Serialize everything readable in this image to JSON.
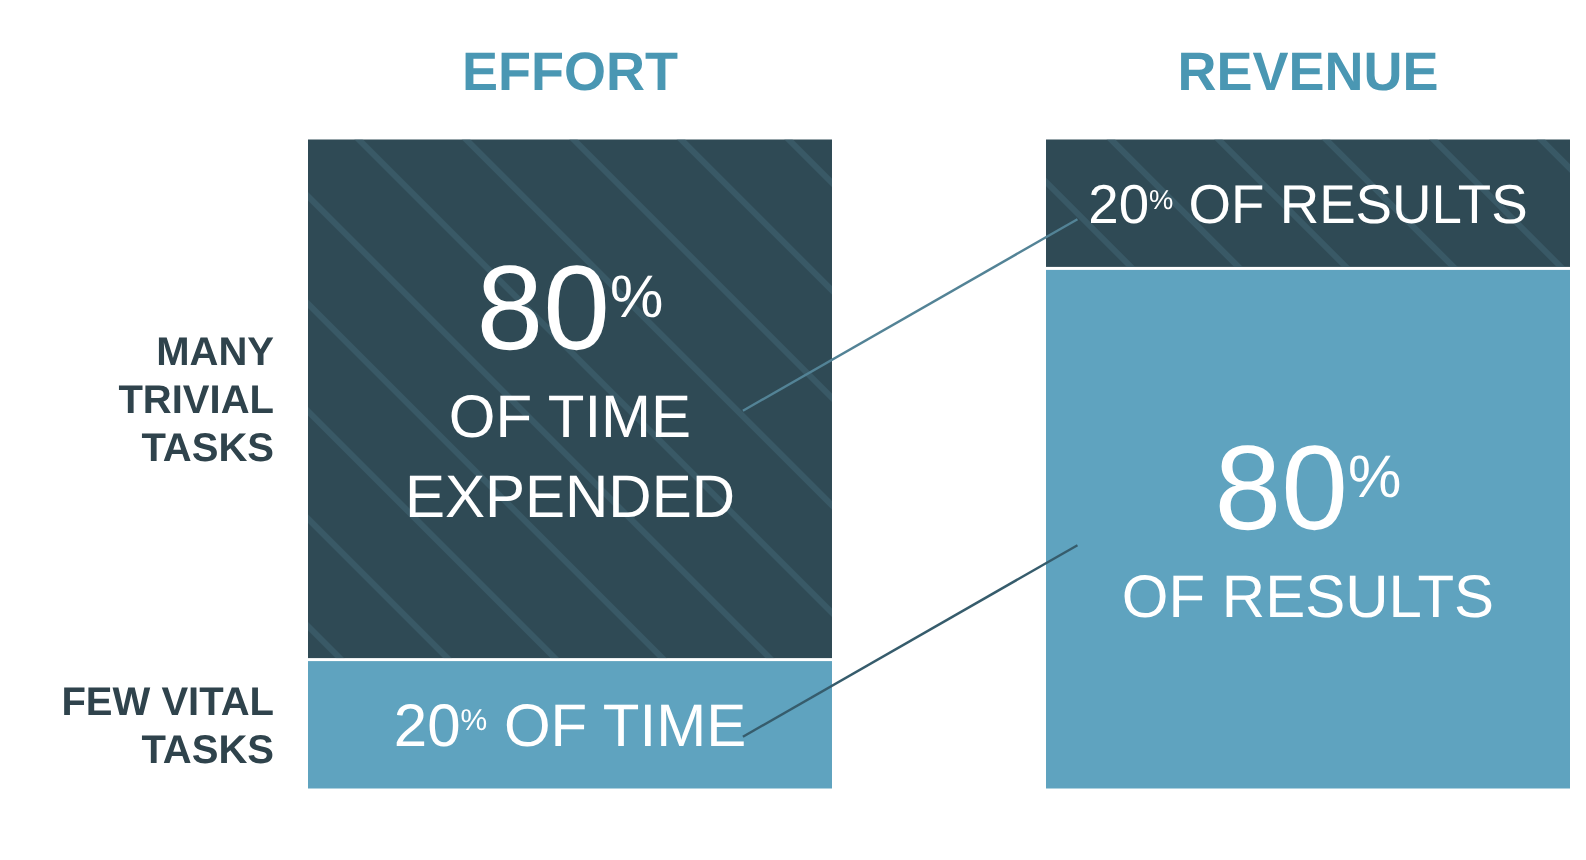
{
  "chart_data": {
    "type": "bar",
    "stacked": true,
    "categories": [
      "EFFORT",
      "REVENUE"
    ],
    "series": [
      {
        "name": "FEW VITAL TASKS",
        "color": "#5fa3bf",
        "values": [
          20,
          80
        ],
        "value_labels": [
          "20$^{%}$ OF TIME",
          "80$^{%}$ OF RESULTS"
        ]
      },
      {
        "name": "MANY TRIVIAL TASKS",
        "color": "#2f4a55",
        "values": [
          80,
          20
        ],
        "value_labels": [
          "80$^{%}$ OF TIME EXPENDED",
          "20$^{%}$ OF RESULTS"
        ]
      }
    ]
  }
}
